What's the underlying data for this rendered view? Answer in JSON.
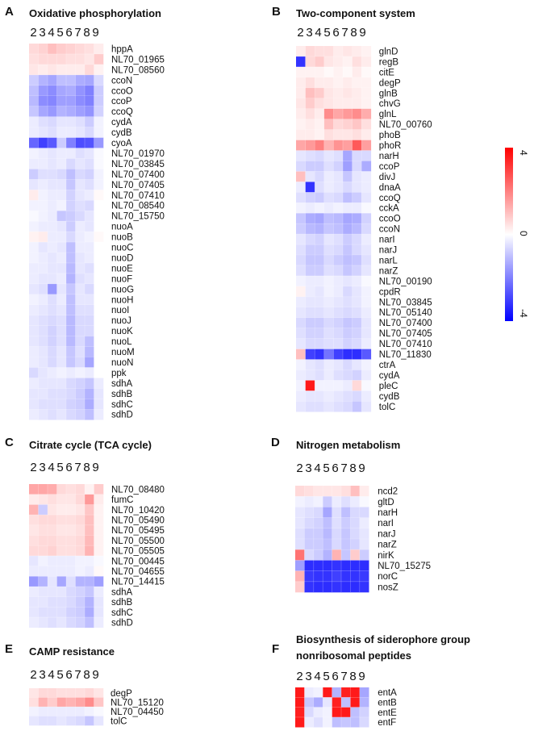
{
  "colors": {
    "high": "#ff0000",
    "mid": "#ffffff",
    "low": "#0000ff"
  },
  "columns": [
    "2",
    "3",
    "4",
    "5",
    "6",
    "7",
    "8",
    "9"
  ],
  "colorbar": {
    "max": "4",
    "mid": "0",
    "min": "-4",
    "range": [
      -4,
      4
    ]
  },
  "chart_data": [
    {
      "type": "heatmap",
      "panel": "A",
      "title": "Oxidative phosphorylation",
      "columns": [
        "2",
        "3",
        "4",
        "5",
        "6",
        "7",
        "8",
        "9"
      ],
      "rows": [
        "hppA",
        "NL70_01965",
        "NL70_08560",
        "ccoN",
        "ccoO",
        "ccoP",
        "ccoQ",
        "cydA",
        "cydB",
        "cyoA",
        "NL70_01970",
        "NL70_03845",
        "NL70_07400",
        "NL70_07405",
        "NL70_07410",
        "NL70_08540",
        "NL70_15750",
        "nuoA",
        "nuoB",
        "nuoC",
        "nuoD",
        "nuoE",
        "nuoF",
        "nuoG",
        "nuoH",
        "nuoI",
        "nuoJ",
        "nuoK",
        "nuoL",
        "nuoM",
        "nuoN",
        "ppk",
        "sdhA",
        "sdhB",
        "sdhC",
        "sdhD"
      ],
      "values": [
        [
          0.6,
          0.7,
          1.0,
          0.8,
          0.7,
          0.6,
          0.5,
          0.3
        ],
        [
          0.5,
          0.6,
          0.6,
          0.6,
          0.5,
          0.5,
          0.4,
          0.8
        ],
        [
          0.4,
          0.3,
          0.4,
          0.3,
          0.3,
          0.3,
          0.6,
          0.2
        ],
        [
          -0.8,
          -1.2,
          -1.4,
          -1.0,
          -1.0,
          -1.3,
          -1.4,
          -0.6
        ],
        [
          -1.0,
          -1.6,
          -1.8,
          -1.4,
          -1.3,
          -1.7,
          -2.0,
          -0.8
        ],
        [
          -1.1,
          -1.8,
          -1.9,
          -1.5,
          -1.5,
          -1.8,
          -2.0,
          -0.8
        ],
        [
          -0.9,
          -1.4,
          -1.6,
          -1.2,
          -1.3,
          -1.5,
          -1.7,
          -0.7
        ],
        [
          -0.3,
          -0.5,
          -0.6,
          -0.4,
          -0.4,
          -0.5,
          -0.8,
          -0.2
        ],
        [
          -0.3,
          -0.4,
          -0.5,
          -0.3,
          -0.3,
          -0.4,
          -0.6,
          -0.2
        ],
        [
          -2.4,
          -3.0,
          -2.6,
          -0.8,
          -2.0,
          -2.8,
          -2.7,
          -1.6
        ],
        [
          -0.2,
          -0.3,
          -0.4,
          -0.3,
          -0.3,
          -0.5,
          -0.4,
          -0.1
        ],
        [
          -0.3,
          -0.3,
          -0.4,
          -0.3,
          -0.6,
          -0.4,
          -0.5,
          -0.1
        ],
        [
          -0.8,
          -0.5,
          -0.5,
          -0.6,
          -1.0,
          -0.6,
          -0.7,
          -0.2
        ],
        [
          -0.4,
          -0.3,
          -0.4,
          -0.4,
          -0.9,
          -0.4,
          -0.5,
          -0.2
        ],
        [
          0.3,
          -0.2,
          -0.3,
          -0.3,
          -0.7,
          -0.4,
          -0.3,
          0.1
        ],
        [
          -0.2,
          -0.2,
          -0.3,
          -0.2,
          -0.7,
          -0.5,
          -0.6,
          0.0
        ],
        [
          -0.1,
          -0.2,
          -0.3,
          -0.9,
          -0.8,
          -0.6,
          -0.4,
          0.0
        ],
        [
          -0.2,
          -0.3,
          -0.3,
          -0.4,
          -0.8,
          -0.3,
          -0.4,
          0.0
        ],
        [
          0.2,
          0.3,
          -0.3,
          -0.3,
          -0.6,
          -0.3,
          -0.2,
          0.1
        ],
        [
          -0.2,
          -0.4,
          -0.3,
          -0.4,
          -1.0,
          -0.3,
          -0.3,
          0.0
        ],
        [
          -0.2,
          -0.3,
          -0.4,
          -0.3,
          -1.0,
          -0.4,
          -0.3,
          0.0
        ],
        [
          -0.3,
          -0.3,
          -0.4,
          -0.4,
          -1.1,
          -0.4,
          -0.5,
          0.0
        ],
        [
          -0.3,
          -0.4,
          -0.4,
          -0.3,
          -1.2,
          -0.5,
          -0.4,
          0.0
        ],
        [
          -0.4,
          -0.5,
          -1.6,
          -0.4,
          -0.9,
          -0.4,
          -0.6,
          0.0
        ],
        [
          -0.2,
          -0.3,
          -0.5,
          -0.3,
          -1.0,
          -0.4,
          -0.4,
          0.0
        ],
        [
          -0.3,
          -0.4,
          -0.5,
          -0.4,
          -1.0,
          -0.5,
          -0.5,
          0.0
        ],
        [
          -0.4,
          -0.5,
          -0.6,
          -0.5,
          -1.1,
          -0.6,
          -0.6,
          0.0
        ],
        [
          -0.4,
          -0.5,
          -0.7,
          -0.5,
          -1.1,
          -0.6,
          -0.6,
          0.0
        ],
        [
          -0.4,
          -0.5,
          -0.7,
          -0.5,
          -1.1,
          -0.6,
          -1.0,
          0.0
        ],
        [
          -0.3,
          -0.4,
          -0.6,
          -0.4,
          -0.9,
          -0.5,
          -1.1,
          0.0
        ],
        [
          -0.3,
          -0.4,
          -0.6,
          -0.4,
          -0.9,
          -0.6,
          -1.4,
          0.0
        ],
        [
          -0.6,
          -0.4,
          -0.3,
          -0.2,
          -0.3,
          -0.2,
          -0.3,
          0.0
        ],
        [
          -0.3,
          -0.4,
          -0.4,
          -0.4,
          -0.6,
          -0.7,
          -0.9,
          -0.3
        ],
        [
          -0.4,
          -0.4,
          -0.5,
          -0.5,
          -0.6,
          -0.8,
          -1.2,
          -0.4
        ],
        [
          -0.4,
          -0.5,
          -0.5,
          -0.5,
          -0.7,
          -0.8,
          -1.3,
          -0.4
        ],
        [
          -0.3,
          -0.4,
          -0.5,
          -0.4,
          -0.6,
          -0.7,
          -1.0,
          -0.3
        ]
      ]
    },
    {
      "type": "heatmap",
      "panel": "B",
      "title": "Two-component system",
      "columns": [
        "2",
        "3",
        "4",
        "5",
        "6",
        "7",
        "8",
        "9"
      ],
      "rows": [
        "glnD",
        "regB",
        "citE",
        "degP",
        "glnB",
        "chvG",
        "glnL",
        "NL70_00760",
        "phoB",
        "phoR",
        "narH",
        "ccoP",
        "divJ",
        "dnaA",
        "ccoQ",
        "cckA",
        "ccoO",
        "ccoN",
        "narI",
        "narJ",
        "narL",
        "narZ",
        "NL70_00190",
        "cpdR",
        "NL70_03845",
        "NL70_05140",
        "NL70_07400",
        "NL70_07405",
        "NL70_07410",
        "NL70_11830",
        "ctrA",
        "cydA",
        "pleC",
        "cydB",
        "tolC"
      ],
      "values": [
        [
          0.3,
          0.6,
          0.5,
          0.5,
          0.3,
          0.4,
          0.3,
          0.2
        ],
        [
          -3.2,
          0.6,
          0.8,
          0.4,
          0.3,
          0.2,
          0.5,
          0.3
        ],
        [
          0.2,
          0.2,
          0.2,
          0.1,
          0.2,
          0.1,
          0.3,
          0.1
        ],
        [
          0.3,
          0.5,
          0.3,
          0.3,
          0.2,
          0.3,
          0.2,
          0.2
        ],
        [
          0.3,
          1.0,
          0.8,
          0.4,
          0.3,
          0.4,
          0.3,
          0.2
        ],
        [
          0.4,
          0.8,
          0.5,
          0.4,
          0.3,
          0.3,
          0.3,
          0.2
        ],
        [
          0.3,
          0.5,
          0.3,
          1.8,
          1.4,
          1.6,
          1.8,
          1.3
        ],
        [
          0.2,
          0.3,
          0.2,
          1.0,
          0.6,
          0.7,
          0.9,
          0.5
        ],
        [
          0.3,
          0.3,
          0.2,
          0.5,
          0.4,
          0.4,
          0.5,
          0.3
        ],
        [
          1.4,
          1.6,
          2.0,
          1.2,
          1.7,
          1.5,
          2.6,
          1.5
        ],
        [
          -0.4,
          -0.5,
          -0.6,
          -0.4,
          -0.5,
          -1.4,
          -0.6,
          -0.6
        ],
        [
          -0.6,
          -0.8,
          -0.8,
          -0.5,
          -0.7,
          -1.5,
          -0.6,
          -1.3
        ],
        [
          1.0,
          -0.4,
          -0.6,
          -0.3,
          -0.4,
          -0.9,
          -0.4,
          -0.3
        ],
        [
          -0.3,
          -3.2,
          -0.5,
          -0.3,
          -0.4,
          -0.6,
          -0.4,
          -0.3
        ],
        [
          -0.5,
          -0.7,
          -0.8,
          -0.5,
          -0.6,
          -1.0,
          -0.8,
          -0.4
        ],
        [
          -0.2,
          -0.3,
          -0.2,
          -0.3,
          -0.2,
          -0.3,
          -0.3,
          -0.1
        ],
        [
          -0.9,
          -1.3,
          -1.4,
          -1.0,
          -1.1,
          -1.4,
          -1.3,
          -0.7
        ],
        [
          -0.8,
          -1.1,
          -1.2,
          -0.9,
          -1.0,
          -1.3,
          -1.1,
          -0.6
        ],
        [
          -0.4,
          -0.6,
          -0.7,
          -0.4,
          -0.5,
          -0.8,
          -0.6,
          -0.3
        ],
        [
          -0.5,
          -0.8,
          -0.8,
          -0.5,
          -0.6,
          -0.9,
          -0.6,
          -0.4
        ],
        [
          -0.6,
          -0.9,
          -0.9,
          -0.6,
          -0.8,
          -1.0,
          -0.9,
          -0.5
        ],
        [
          -0.5,
          -0.8,
          -0.8,
          -0.5,
          -0.6,
          -0.9,
          -0.7,
          -0.4
        ],
        [
          -0.2,
          -0.3,
          -0.3,
          -0.2,
          -0.3,
          -0.4,
          -0.3,
          -0.1
        ],
        [
          0.2,
          -0.3,
          -0.4,
          -0.2,
          -0.3,
          -0.6,
          -0.4,
          -0.2
        ],
        [
          -0.3,
          -0.4,
          -0.4,
          -0.3,
          -0.4,
          -0.5,
          -0.4,
          -0.2
        ],
        [
          -0.4,
          -0.5,
          -0.5,
          -0.4,
          -0.5,
          -0.6,
          -0.5,
          -0.3
        ],
        [
          -0.6,
          -0.8,
          -0.8,
          -0.6,
          -0.7,
          -0.9,
          -0.8,
          -0.4
        ],
        [
          -0.5,
          -0.7,
          -0.7,
          -0.5,
          -0.6,
          -0.8,
          -0.7,
          -0.4
        ],
        [
          -0.4,
          -0.6,
          -0.6,
          -0.5,
          -0.5,
          -0.7,
          -0.6,
          -0.3
        ],
        [
          1.0,
          -3.0,
          -3.2,
          -2.2,
          -3.0,
          -3.3,
          -3.3,
          -2.6
        ],
        [
          -0.2,
          -0.4,
          -0.5,
          -0.3,
          -0.4,
          -0.6,
          -0.4,
          -0.2
        ],
        [
          -0.3,
          -0.4,
          -0.5,
          -0.3,
          -0.5,
          -0.6,
          -0.7,
          -0.3
        ],
        [
          -0.2,
          3.6,
          -0.2,
          -0.2,
          -0.2,
          -0.3,
          0.6,
          -0.1
        ],
        [
          -0.3,
          -0.4,
          -0.4,
          -0.3,
          -0.4,
          -0.5,
          -0.6,
          -0.3
        ],
        [
          -0.4,
          -0.5,
          -0.5,
          -0.4,
          -0.5,
          -0.6,
          -0.9,
          -0.4
        ]
      ]
    },
    {
      "type": "heatmap",
      "panel": "C",
      "title": "Citrate cycle (TCA cycle)",
      "columns": [
        "2",
        "3",
        "4",
        "5",
        "6",
        "7",
        "8",
        "9"
      ],
      "rows": [
        "NL70_08480",
        "fumC",
        "NL70_10420",
        "NL70_05490",
        "NL70_05495",
        "NL70_05500",
        "NL70_05505",
        "NL70_00445",
        "NL70_04655",
        "NL70_14415",
        "sdhA",
        "sdhB",
        "sdhC",
        "sdhD"
      ],
      "values": [
        [
          1.4,
          1.4,
          1.3,
          0.6,
          0.5,
          0.6,
          0.2,
          0.8
        ],
        [
          0.3,
          0.4,
          0.5,
          0.4,
          0.4,
          0.6,
          1.6,
          0.3
        ],
        [
          1.2,
          -0.8,
          0.4,
          0.3,
          0.3,
          0.4,
          0.9,
          0.2
        ],
        [
          0.5,
          0.6,
          0.6,
          0.5,
          0.5,
          0.6,
          1.0,
          0.2
        ],
        [
          0.4,
          0.5,
          0.5,
          0.4,
          0.4,
          0.5,
          1.0,
          0.2
        ],
        [
          0.5,
          0.6,
          0.6,
          0.5,
          0.5,
          0.6,
          1.1,
          0.2
        ],
        [
          0.6,
          0.6,
          0.7,
          0.5,
          0.5,
          0.6,
          1.2,
          0.2
        ],
        [
          -0.4,
          -0.2,
          -0.3,
          -0.3,
          -0.3,
          -0.2,
          -0.2,
          -0.1
        ],
        [
          -0.3,
          -0.3,
          -0.3,
          -0.3,
          -0.3,
          -0.2,
          -0.3,
          0.1
        ],
        [
          -1.6,
          -1.2,
          -0.4,
          -1.4,
          -0.5,
          -1.2,
          -1.2,
          -1.5
        ],
        [
          -0.3,
          -0.4,
          -0.4,
          -0.4,
          -0.6,
          -0.7,
          -0.9,
          -0.3
        ],
        [
          -0.4,
          -0.4,
          -0.5,
          -0.5,
          -0.6,
          -0.8,
          -1.2,
          -0.4
        ],
        [
          -0.4,
          -0.5,
          -0.5,
          -0.5,
          -0.7,
          -0.8,
          -1.3,
          -0.4
        ],
        [
          -0.3,
          -0.4,
          -0.5,
          -0.4,
          -0.6,
          -0.7,
          -1.0,
          -0.3
        ]
      ]
    },
    {
      "type": "heatmap",
      "panel": "D",
      "title": "Nitrogen metabolism",
      "columns": [
        "2",
        "3",
        "4",
        "5",
        "6",
        "7",
        "8",
        "9"
      ],
      "rows": [
        "ncd2",
        "gltD",
        "narH",
        "narI",
        "narJ",
        "narZ",
        "nirK",
        "NL70_15275",
        "norC",
        "nosZ"
      ],
      "values": [
        [
          0.6,
          0.5,
          0.4,
          0.4,
          0.4,
          0.5,
          1.0,
          0.3
        ],
        [
          -0.2,
          -0.3,
          -0.2,
          -0.8,
          -0.3,
          -0.5,
          -0.3,
          -0.1
        ],
        [
          -0.4,
          -0.5,
          -0.6,
          -1.4,
          -0.5,
          -1.0,
          -0.6,
          -0.6
        ],
        [
          -0.4,
          -0.6,
          -0.7,
          -1.0,
          -0.5,
          -0.8,
          -0.6,
          -0.3
        ],
        [
          -0.5,
          -0.8,
          -0.8,
          -1.1,
          -0.6,
          -0.9,
          -0.6,
          -0.4
        ],
        [
          -0.5,
          -0.8,
          -0.8,
          -1.0,
          -0.6,
          -0.9,
          -0.7,
          -0.4
        ],
        [
          2.2,
          -0.6,
          -0.8,
          -1.2,
          1.2,
          -0.9,
          0.8,
          -0.8
        ],
        [
          -1.5,
          -3.3,
          -3.3,
          -3.3,
          -3.2,
          -3.3,
          -3.3,
          -3.3
        ],
        [
          1.2,
          -3.1,
          -3.2,
          -3.2,
          -3.0,
          -3.2,
          -3.2,
          -3.1
        ],
        [
          0.8,
          -3.2,
          -3.3,
          -3.3,
          -3.2,
          -3.3,
          -3.3,
          -3.2
        ]
      ]
    },
    {
      "type": "heatmap",
      "panel": "E",
      "title": "CAMP resistance",
      "columns": [
        "2",
        "3",
        "4",
        "5",
        "6",
        "7",
        "8",
        "9"
      ],
      "rows": [
        "degP",
        "NL70_15120",
        "NL70_04450",
        "tolC"
      ],
      "values": [
        [
          0.4,
          0.6,
          0.6,
          0.5,
          0.5,
          0.5,
          0.6,
          0.4
        ],
        [
          0.5,
          1.2,
          0.8,
          1.4,
          1.2,
          1.4,
          1.8,
          0.9
        ],
        [
          -0.2,
          -0.3,
          -0.3,
          -0.3,
          -0.3,
          -0.3,
          -0.2,
          -0.1
        ],
        [
          -0.4,
          -0.5,
          -0.5,
          -0.4,
          -0.5,
          -0.6,
          -0.9,
          -0.4
        ]
      ]
    },
    {
      "type": "heatmap",
      "panel": "F",
      "title": "Biosynthesis of siderophore group nonribosomal peptides",
      "title_lines": [
        "Biosynthesis of siderophore group",
        "nonribosomal peptides"
      ],
      "columns": [
        "2",
        "3",
        "4",
        "5",
        "6",
        "7",
        "8",
        "9"
      ],
      "rows": [
        "entA",
        "entB",
        "entE",
        "entF"
      ],
      "values": [
        [
          3.6,
          -0.3,
          -0.2,
          3.6,
          -1.2,
          3.5,
          3.6,
          -1.4
        ],
        [
          3.6,
          -0.9,
          -1.3,
          -0.4,
          3.5,
          -1.0,
          3.6,
          -1.2
        ],
        [
          3.5,
          -0.6,
          -0.3,
          -0.2,
          3.6,
          3.6,
          -1.0,
          -0.7
        ],
        [
          3.6,
          -0.3,
          -0.5,
          -0.2,
          -1.0,
          -0.9,
          -1.0,
          -0.6
        ]
      ]
    }
  ]
}
